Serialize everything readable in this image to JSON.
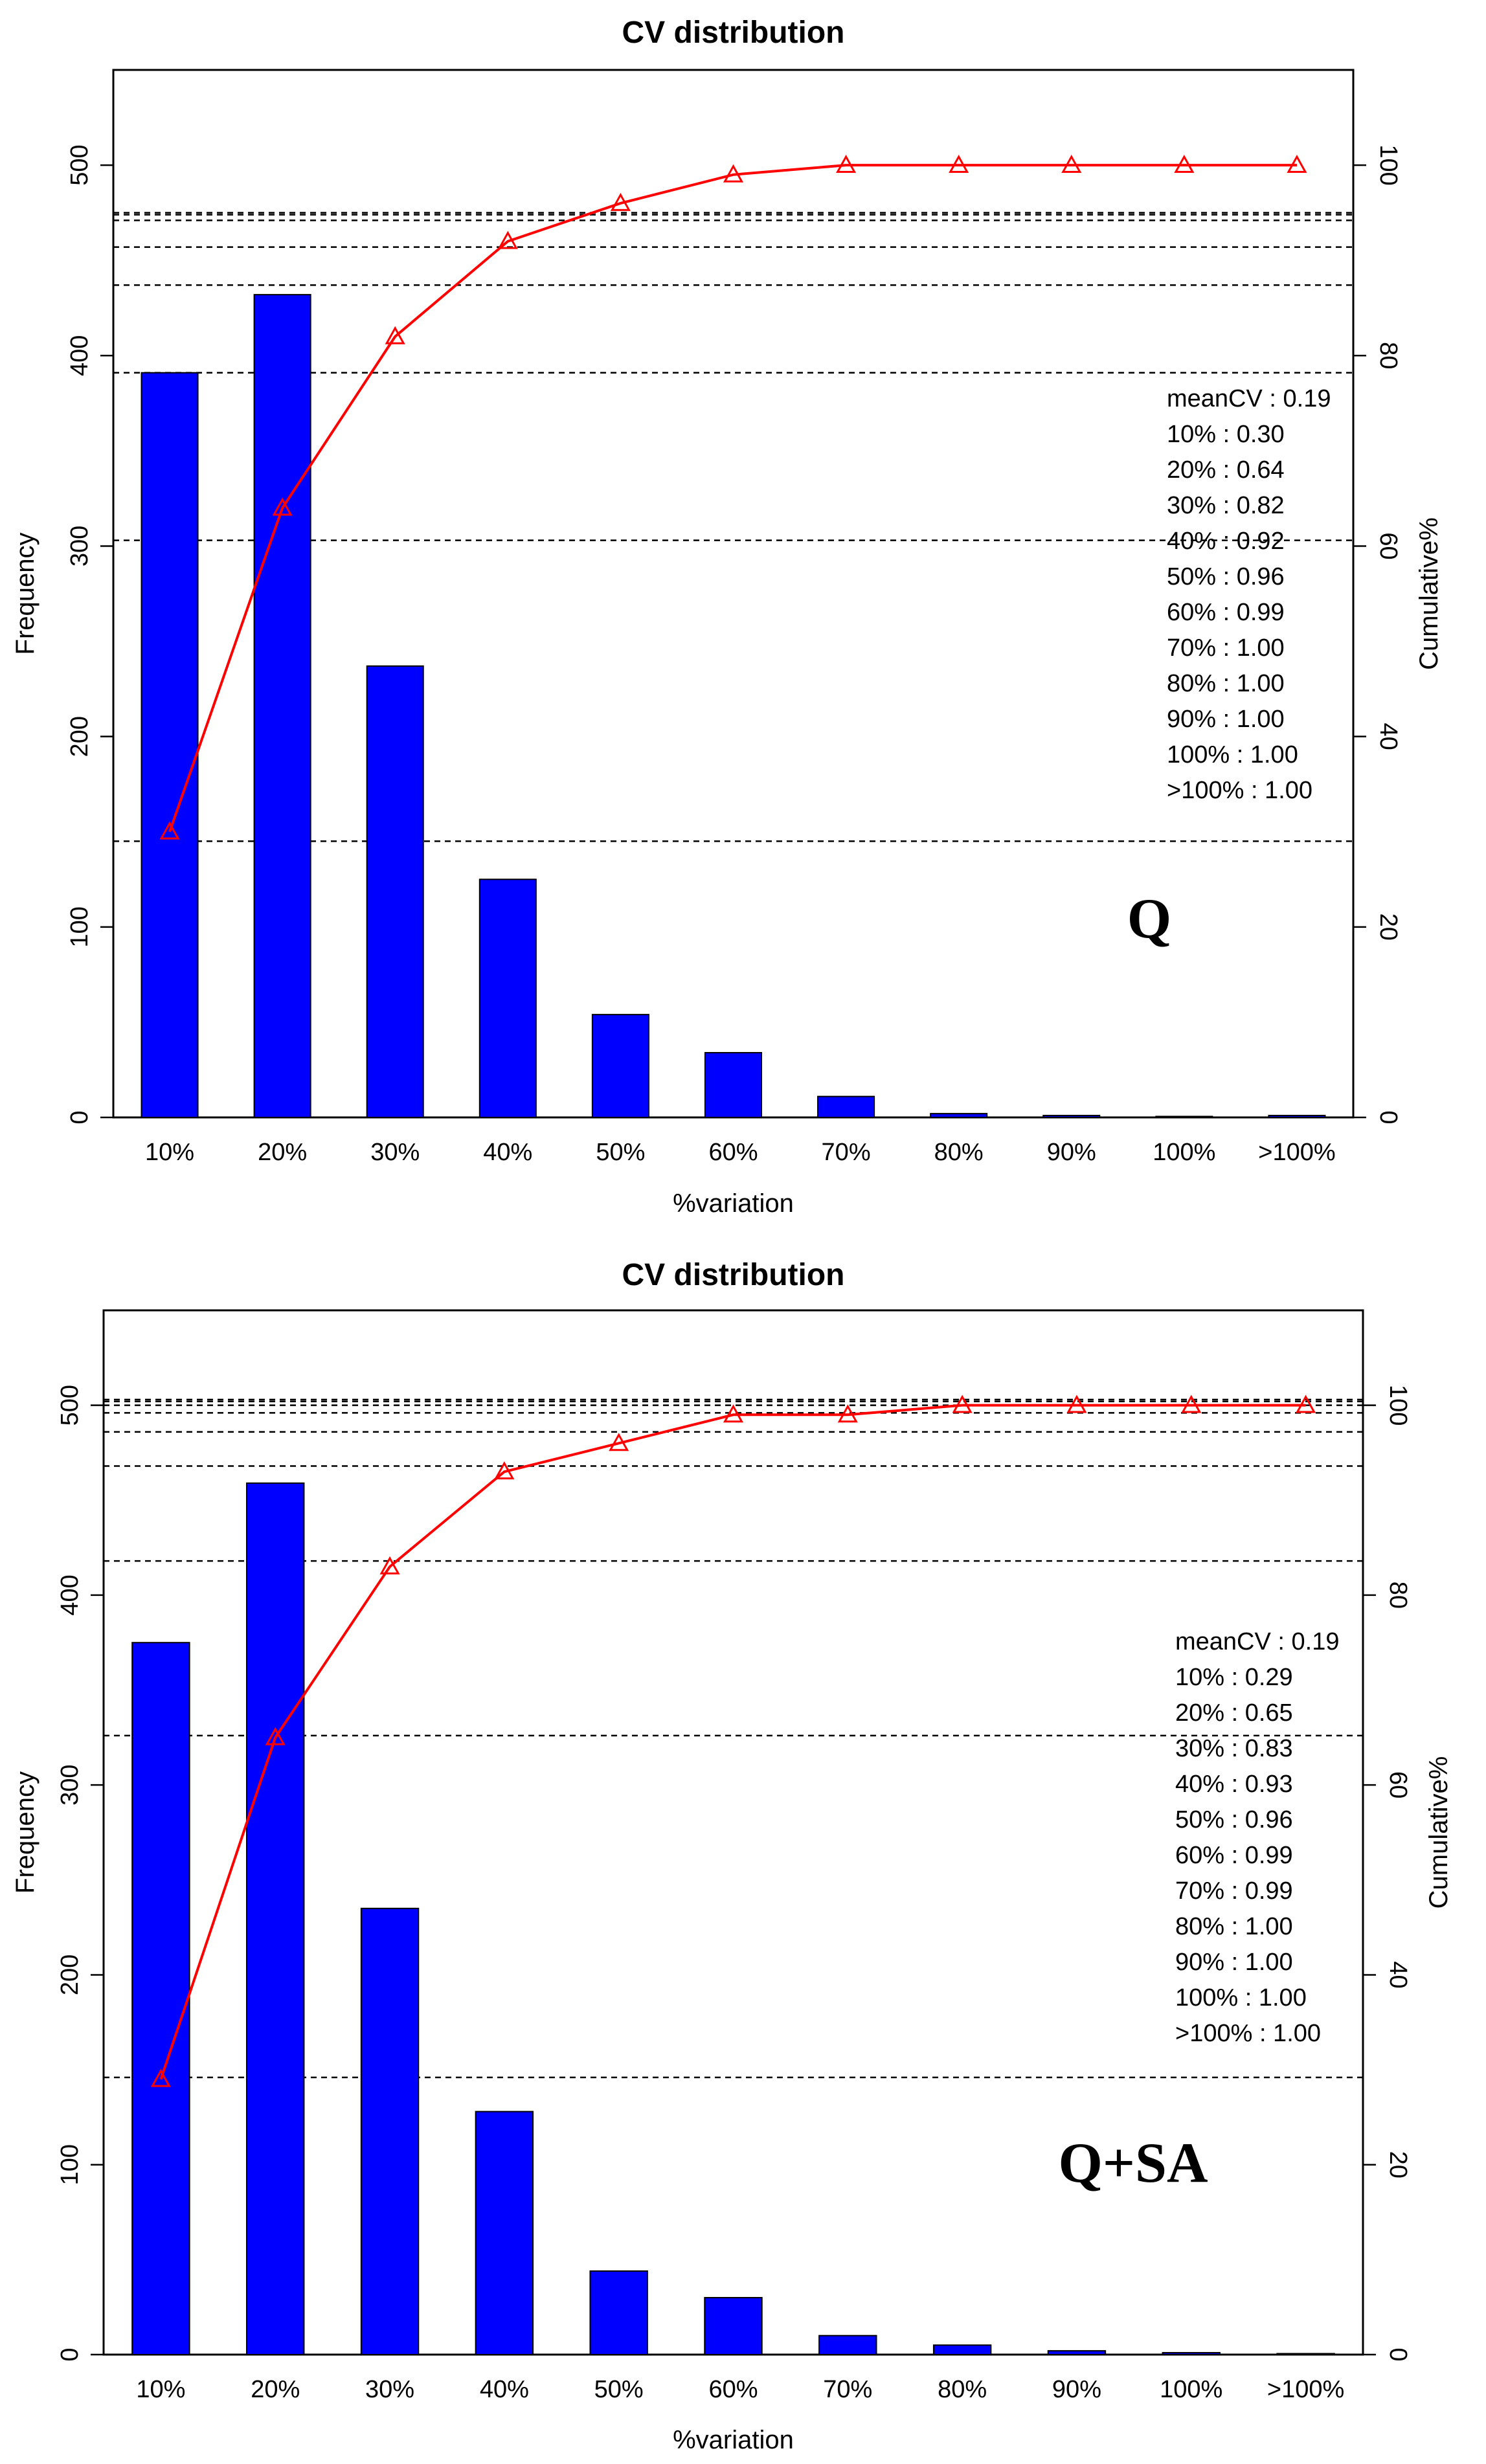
{
  "chart_data": [
    {
      "type": "bar",
      "title": "CV distribution",
      "xlabel": "%variation",
      "ylabel": "Frequency",
      "y2label": "Cumulative%",
      "ylim": [
        0,
        550
      ],
      "y2lim": [
        0,
        110
      ],
      "yticks": [
        0,
        100,
        200,
        300,
        400,
        500
      ],
      "y2ticks": [
        0,
        20,
        40,
        60,
        80,
        100
      ],
      "categories": [
        "10%",
        "20%",
        "30%",
        "40%",
        "50%",
        "60%",
        "70%",
        "80%",
        "90%",
        "100%",
        ">100%"
      ],
      "series": [
        {
          "name": "Frequency",
          "type": "bar",
          "color": "#0000ff",
          "values": [
            391,
            432,
            237,
            125,
            54,
            34,
            11,
            2,
            1,
            0,
            1
          ]
        },
        {
          "name": "Cumulative%",
          "type": "line",
          "color": "#ff0000",
          "marker": "triangle",
          "values": [
            30,
            64,
            82,
            92,
            96,
            99,
            100,
            100,
            100,
            100,
            100
          ]
        }
      ],
      "reference_lines_frequency": [
        145,
        303,
        391,
        437,
        457,
        471,
        474,
        475
      ],
      "stats_lines": [
        "meanCV : 0.19",
        "10% : 0.30",
        "20% : 0.64",
        "30% : 0.82",
        "40% : 0.92",
        "50% : 0.96",
        "60% : 0.99",
        "70% : 1.00",
        "80% : 1.00",
        "90% : 1.00",
        "100% : 1.00",
        ">100% : 1.00"
      ],
      "panel_label": "Q"
    },
    {
      "type": "bar",
      "title": "CV distribution",
      "xlabel": "%variation",
      "ylabel": "Frequency",
      "y2label": "Cumulative%",
      "ylim": [
        0,
        550
      ],
      "y2lim": [
        0,
        110
      ],
      "yticks": [
        0,
        100,
        200,
        300,
        400,
        500
      ],
      "y2ticks": [
        0,
        20,
        40,
        60,
        80,
        100
      ],
      "categories": [
        "10%",
        "20%",
        "30%",
        "40%",
        "50%",
        "60%",
        "70%",
        "80%",
        "90%",
        "100%",
        ">100%"
      ],
      "series": [
        {
          "name": "Frequency",
          "type": "bar",
          "color": "#0000ff",
          "values": [
            375,
            459,
            235,
            128,
            44,
            30,
            10,
            5,
            2,
            1,
            0
          ]
        },
        {
          "name": "Cumulative%",
          "type": "line",
          "color": "#ff0000",
          "marker": "triangle",
          "values": [
            29,
            65,
            83,
            93,
            96,
            99,
            99,
            100,
            100,
            100,
            100
          ]
        }
      ],
      "reference_lines_frequency": [
        146,
        326,
        418,
        468,
        486,
        496,
        500,
        502,
        503
      ],
      "stats_lines": [
        "meanCV : 0.19",
        "10% : 0.29",
        "20% : 0.65",
        "30% : 0.83",
        "40% : 0.93",
        "50% : 0.96",
        "60% : 0.99",
        "70% : 0.99",
        "80% : 1.00",
        "90% : 1.00",
        "100% : 1.00",
        ">100% : 1.00"
      ],
      "panel_label": "Q+SA"
    }
  ]
}
